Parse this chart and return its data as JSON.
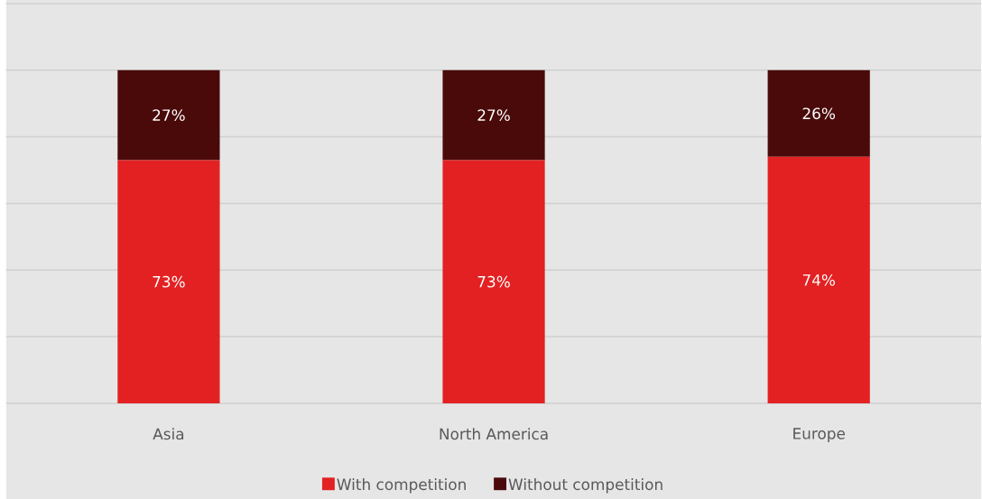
{
  "chart_data": {
    "type": "bar",
    "stacked": true,
    "categories": [
      "Asia",
      "North America",
      "Europe"
    ],
    "series": [
      {
        "name": "With competition",
        "color": "#e32122",
        "values": [
          73,
          73,
          74
        ],
        "value_labels": [
          "73%",
          "73%",
          "74%"
        ]
      },
      {
        "name": "Without competition",
        "color": "#4a0a0a",
        "values": [
          27,
          27,
          26
        ],
        "value_labels": [
          "27%",
          "27%",
          "26%"
        ]
      }
    ],
    "ylim": [
      0,
      120
    ],
    "yticks": [
      {
        "value": 0,
        "label": null
      },
      {
        "value": 20,
        "label": null
      },
      {
        "value": 40,
        "label": null
      },
      {
        "value": 60,
        "label": null
      },
      {
        "value": 80,
        "label": null
      },
      {
        "value": 100,
        "label": null
      },
      {
        "value": 120,
        "label": null
      }
    ],
    "tick_labels": "x",
    "grid": "y",
    "legend": "bottom"
  }
}
